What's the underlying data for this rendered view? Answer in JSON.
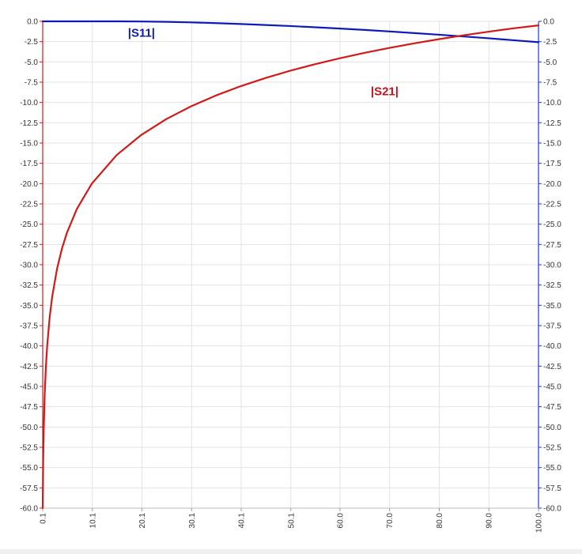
{
  "chart_data": {
    "type": "line",
    "title": "",
    "xlabel": "",
    "ylabel": "",
    "x_tick_labels": [
      "0.1",
      "10.1",
      "20.1",
      "30.1",
      "40.1",
      "50.1",
      "60.0",
      "70.0",
      "80.0",
      "90.0",
      "100.0"
    ],
    "x_tick_values": [
      0.1,
      10.1,
      20.1,
      30.1,
      40.1,
      50.1,
      60.0,
      70.0,
      80.0,
      90.0,
      100.0
    ],
    "xlim": [
      0.1,
      100.0
    ],
    "ylim_left": [
      -60,
      0
    ],
    "ylim_right": [
      -60,
      0
    ],
    "y_tick_labels": [
      "0.0",
      "-2.5",
      "-5.0",
      "-7.5",
      "-10.0",
      "-12.5",
      "-15.0",
      "-17.5",
      "-20.0",
      "-22.5",
      "-25.0",
      "-27.5",
      "-30.0",
      "-32.5",
      "-35.0",
      "-37.5",
      "-40.0",
      "-42.5",
      "-45.0",
      "-47.5",
      "-50.0",
      "-52.5",
      "-55.0",
      "-57.5",
      "-60.0"
    ],
    "y_tick_values": [
      0,
      -2.5,
      -5,
      -7.5,
      -10,
      -12.5,
      -15,
      -17.5,
      -20,
      -22.5,
      -25,
      -27.5,
      -30,
      -32.5,
      -35,
      -37.5,
      -40,
      -42.5,
      -45,
      -47.5,
      -50,
      -52.5,
      -55,
      -57.5,
      -60
    ],
    "grid": true,
    "legend": "none",
    "series": [
      {
        "name": "|S11|",
        "color": "#0d1bb5",
        "axis": "right",
        "x": [
          0.1,
          5,
          10,
          15,
          20,
          25,
          30,
          35,
          40,
          45,
          50,
          55,
          60,
          65,
          70,
          75,
          80,
          85,
          90,
          95,
          100
        ],
        "y": [
          0.0,
          0.0,
          0.0,
          0.0,
          -0.02,
          -0.06,
          -0.13,
          -0.22,
          -0.33,
          -0.45,
          -0.58,
          -0.73,
          -0.89,
          -1.06,
          -1.25,
          -1.45,
          -1.65,
          -1.87,
          -2.09,
          -2.33,
          -2.57
        ]
      },
      {
        "name": "|S21|",
        "color": "#d01a1a",
        "axis": "left",
        "x": [
          0.1,
          0.2,
          0.3,
          0.5,
          0.75,
          1,
          1.5,
          2,
          3,
          4,
          5,
          7,
          10,
          15,
          20,
          25,
          30,
          35,
          40,
          45,
          50,
          55,
          60,
          65,
          70,
          75,
          80,
          85,
          90,
          95,
          100
        ],
        "y": [
          -59.99,
          -53.98,
          -50.46,
          -46.02,
          -42.5,
          -40.0,
          -36.48,
          -33.98,
          -30.46,
          -27.96,
          -26.02,
          -23.1,
          -20.0,
          -16.48,
          -13.98,
          -12.05,
          -10.47,
          -9.14,
          -7.99,
          -6.98,
          -6.08,
          -5.28,
          -4.55,
          -3.88,
          -3.27,
          -2.71,
          -2.19,
          -1.71,
          -1.27,
          -0.86,
          -0.5
        ]
      }
    ],
    "annotations": [
      {
        "text": "|S11|",
        "color": "#0d1bb5",
        "x": 20.0,
        "y": -1.9
      },
      {
        "text": "|S21|",
        "color": "#c0141a",
        "x": 69.0,
        "y": -9.1
      }
    ]
  }
}
